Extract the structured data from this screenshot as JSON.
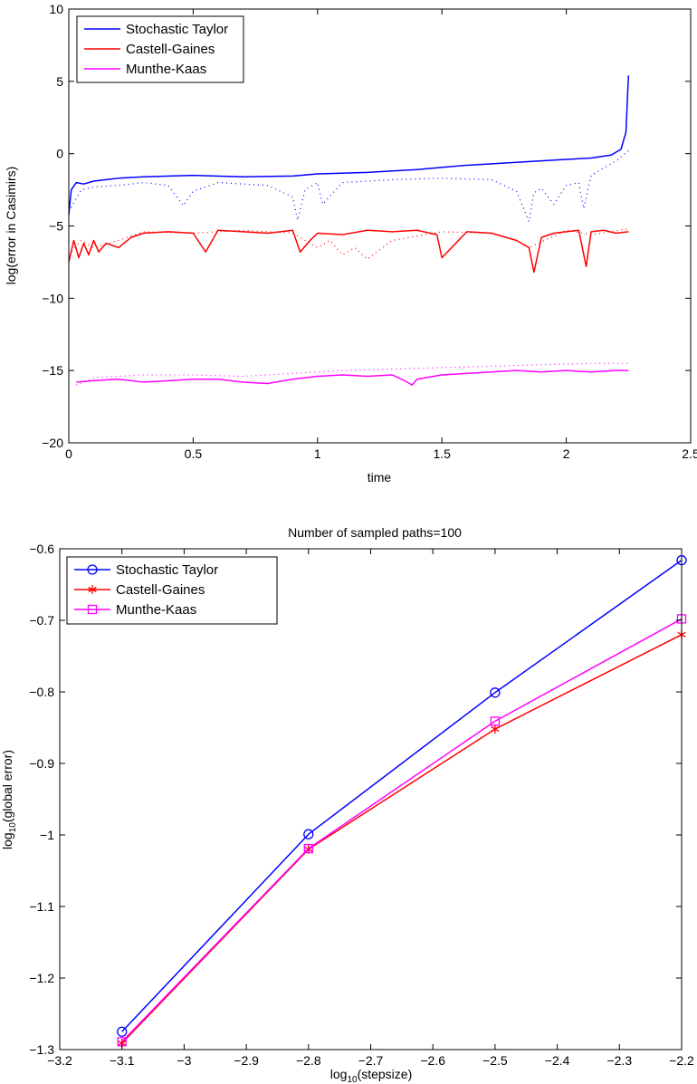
{
  "chart_data": [
    {
      "type": "line",
      "title": "",
      "xlabel": "time",
      "ylabel": "log(error in Casimirs)",
      "xlim": [
        0,
        2.5
      ],
      "ylim": [
        -20,
        10
      ],
      "xticks": [
        0,
        0.5,
        1,
        1.5,
        2,
        2.5
      ],
      "yticks": [
        -20,
        -15,
        -10,
        -5,
        0,
        5,
        10
      ],
      "xtick_labels": [
        "0",
        "0.5",
        "1",
        "1.5",
        "2",
        "2.5"
      ],
      "ytick_labels": [
        "−20",
        "−15",
        "−10",
        "−5",
        "0",
        "5",
        "10"
      ],
      "grid": false,
      "legend": "top-left",
      "series": [
        {
          "name": "Stochastic Taylor",
          "color": "#0000ff",
          "style": "solid",
          "x": [
            0,
            0.01,
            0.03,
            0.06,
            0.1,
            0.2,
            0.3,
            0.5,
            0.7,
            0.9,
            1.0,
            1.2,
            1.4,
            1.6,
            1.8,
            2.0,
            2.1,
            2.18,
            2.22,
            2.24,
            2.245,
            2.25
          ],
          "y": [
            -4.2,
            -2.5,
            -2.0,
            -2.1,
            -1.9,
            -1.7,
            -1.6,
            -1.5,
            -1.6,
            -1.55,
            -1.4,
            -1.3,
            -1.1,
            -0.8,
            -0.6,
            -0.4,
            -0.3,
            -0.1,
            0.3,
            1.5,
            3.5,
            5.4
          ]
        },
        {
          "name": "",
          "color": "#0000ff",
          "style": "dotted",
          "x": [
            0,
            0.05,
            0.1,
            0.2,
            0.3,
            0.4,
            0.46,
            0.5,
            0.6,
            0.8,
            0.9,
            0.92,
            0.95,
            1.0,
            1.02,
            1.1,
            1.3,
            1.5,
            1.7,
            1.8,
            1.85,
            1.87,
            1.9,
            1.95,
            2.0,
            2.05,
            2.07,
            2.1,
            2.2,
            2.25
          ],
          "y": [
            -4.0,
            -2.5,
            -2.3,
            -2.2,
            -2.0,
            -2.2,
            -3.6,
            -2.6,
            -2.0,
            -2.2,
            -3.0,
            -4.6,
            -2.5,
            -2.0,
            -3.5,
            -2.0,
            -1.8,
            -1.7,
            -1.8,
            -2.6,
            -4.7,
            -2.7,
            -2.4,
            -3.5,
            -2.2,
            -2.0,
            -3.8,
            -1.5,
            -0.5,
            0.2
          ]
        },
        {
          "name": "Castell-Gaines",
          "color": "#ff0000",
          "style": "solid",
          "x": [
            0,
            0.02,
            0.04,
            0.06,
            0.08,
            0.1,
            0.12,
            0.15,
            0.2,
            0.25,
            0.3,
            0.4,
            0.5,
            0.55,
            0.6,
            0.7,
            0.8,
            0.9,
            0.93,
            0.97,
            1.0,
            1.1,
            1.2,
            1.3,
            1.4,
            1.48,
            1.5,
            1.6,
            1.7,
            1.8,
            1.85,
            1.87,
            1.9,
            1.95,
            2.0,
            2.05,
            2.08,
            2.1,
            2.15,
            2.2,
            2.25
          ],
          "y": [
            -7.5,
            -6.0,
            -7.2,
            -6.2,
            -7.0,
            -6.0,
            -6.8,
            -6.2,
            -6.5,
            -5.8,
            -5.5,
            -5.4,
            -5.5,
            -6.8,
            -5.3,
            -5.4,
            -5.5,
            -5.3,
            -6.8,
            -6.0,
            -5.5,
            -5.6,
            -5.3,
            -5.4,
            -5.3,
            -5.6,
            -7.2,
            -5.4,
            -5.5,
            -6.0,
            -6.5,
            -8.2,
            -5.8,
            -5.5,
            -5.4,
            -5.3,
            -7.8,
            -5.4,
            -5.3,
            -5.5,
            -5.4
          ]
        },
        {
          "name": "",
          "color": "#ff0000",
          "style": "dotted",
          "x": [
            0,
            0.05,
            0.1,
            0.2,
            0.3,
            0.5,
            0.7,
            0.9,
            1.0,
            1.05,
            1.1,
            1.15,
            1.2,
            1.3,
            1.5,
            1.7,
            1.8,
            1.85,
            2.0,
            2.1,
            2.25
          ],
          "y": [
            -7.0,
            -6.0,
            -6.5,
            -6.0,
            -5.4,
            -5.5,
            -5.3,
            -5.5,
            -6.5,
            -6.0,
            -7.0,
            -6.5,
            -7.3,
            -6.0,
            -5.4,
            -5.5,
            -6.0,
            -6.5,
            -5.3,
            -5.6,
            -5.2
          ]
        },
        {
          "name": "Munthe-Kaas",
          "color": "#ff00ff",
          "style": "solid",
          "x": [
            0.03,
            0.1,
            0.2,
            0.3,
            0.4,
            0.5,
            0.6,
            0.7,
            0.8,
            0.9,
            1.0,
            1.1,
            1.2,
            1.3,
            1.35,
            1.38,
            1.4,
            1.5,
            1.6,
            1.7,
            1.8,
            1.9,
            2.0,
            2.1,
            2.2,
            2.25
          ],
          "y": [
            -15.8,
            -15.7,
            -15.6,
            -15.8,
            -15.7,
            -15.6,
            -15.6,
            -15.8,
            -15.9,
            -15.6,
            -15.4,
            -15.3,
            -15.4,
            -15.3,
            -15.7,
            -16.0,
            -15.6,
            -15.3,
            -15.2,
            -15.1,
            -15.0,
            -15.1,
            -15.0,
            -15.1,
            -15.0,
            -15.0
          ]
        },
        {
          "name": "",
          "color": "#ff00ff",
          "style": "dotted",
          "x": [
            0.03,
            0.1,
            0.3,
            0.5,
            0.7,
            0.9,
            1.1,
            1.3,
            1.5,
            1.7,
            1.9,
            2.1,
            2.25
          ],
          "y": [
            -16.0,
            -15.5,
            -15.3,
            -15.3,
            -15.4,
            -15.2,
            -15.0,
            -14.9,
            -14.8,
            -14.7,
            -14.6,
            -14.5,
            -14.5
          ]
        }
      ]
    },
    {
      "type": "line",
      "title": "Number of sampled paths=100",
      "xlabel": "log10(stepsize)",
      "xlabel_parts": [
        "log",
        "10",
        "(stepsize)"
      ],
      "ylabel": "log10(global error)",
      "ylabel_parts": [
        "log",
        "10",
        "(global error)"
      ],
      "xlim": [
        -3.2,
        -2.2
      ],
      "ylim": [
        -1.3,
        -0.6
      ],
      "xticks": [
        -3.2,
        -3.1,
        -3.0,
        -2.9,
        -2.8,
        -2.7,
        -2.6,
        -2.5,
        -2.4,
        -2.3,
        -2.2
      ],
      "yticks": [
        -1.3,
        -1.2,
        -1.1,
        -1.0,
        -0.9,
        -0.8,
        -0.7,
        -0.6
      ],
      "xtick_labels": [
        "−3.2",
        "−3.1",
        "−3",
        "−2.9",
        "−2.8",
        "−2.7",
        "−2.6",
        "−2.5",
        "−2.4",
        "−2.3",
        "−2.2"
      ],
      "ytick_labels": [
        "−1.3",
        "−1.2",
        "−1.1",
        "−1",
        "−0.9",
        "−0.8",
        "−0.7",
        "−0.6"
      ],
      "grid": false,
      "legend": "top-left",
      "series": [
        {
          "name": "Stochastic Taylor",
          "color": "#0000ff",
          "marker": "circle",
          "x": [
            -3.1,
            -2.8,
            -2.5,
            -2.2
          ],
          "y": [
            -1.275,
            -0.999,
            -0.801,
            -0.616
          ]
        },
        {
          "name": "Castell-Gaines",
          "color": "#ff0000",
          "marker": "asterisk",
          "x": [
            -3.1,
            -2.8,
            -2.5,
            -2.2
          ],
          "y": [
            -1.291,
            -1.02,
            -0.852,
            -0.72
          ]
        },
        {
          "name": "Munthe-Kaas",
          "color": "#ff00ff",
          "marker": "square",
          "x": [
            -3.1,
            -2.8,
            -2.5,
            -2.2
          ],
          "y": [
            -1.289,
            -1.019,
            -0.841,
            -0.698
          ]
        }
      ]
    }
  ]
}
